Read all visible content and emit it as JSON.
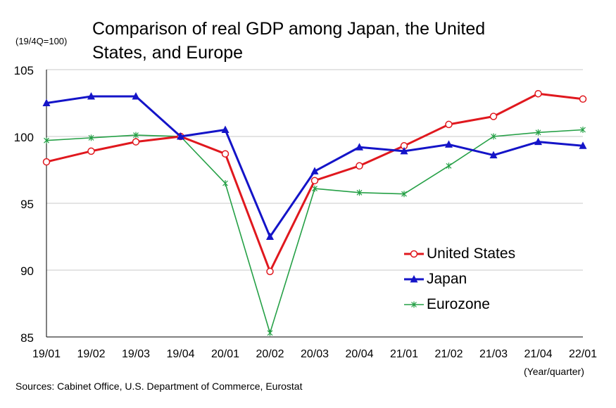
{
  "title": "Comparison of real GDP among Japan, the United States, and Europe",
  "y_unit": "(19/4Q=100)",
  "x_unit": "(Year/quarter)",
  "source": "Sources: Cabinet Office, U.S. Department of Commerce, Eurostat",
  "colors": {
    "us": "#e0181e",
    "japan": "#1414c8",
    "eurozone": "#25a046",
    "gridline": "#c8c8c8",
    "axis": "#000000"
  },
  "chart_data": {
    "type": "line",
    "title": "Comparison of real GDP among Japan, the United States, and Europe",
    "xlabel": "(Year/quarter)",
    "ylabel": "(19/4Q=100)",
    "categories": [
      "19/01",
      "19/02",
      "19/03",
      "19/04",
      "20/01",
      "20/02",
      "20/03",
      "20/04",
      "21/01",
      "21/02",
      "21/03",
      "21/04",
      "22/01"
    ],
    "ylim": [
      85,
      105
    ],
    "yticks": [
      85,
      90,
      95,
      100,
      105
    ],
    "grid": "horizontal",
    "legend_position": "bottom-right",
    "series": [
      {
        "key": "us",
        "name": "United States",
        "marker": "circle",
        "values": [
          98.1,
          98.9,
          99.6,
          100.0,
          98.7,
          89.9,
          96.7,
          97.8,
          99.3,
          100.9,
          101.5,
          103.2,
          102.8
        ]
      },
      {
        "key": "japan",
        "name": "Japan",
        "marker": "triangle",
        "values": [
          102.5,
          103.0,
          103.0,
          100.0,
          100.5,
          92.5,
          97.4,
          99.2,
          98.9,
          99.4,
          98.6,
          99.6,
          99.3
        ]
      },
      {
        "key": "eurozone",
        "name": "Eurozone",
        "marker": "x",
        "values": [
          99.7,
          99.9,
          100.1,
          100.0,
          96.5,
          85.3,
          96.1,
          95.8,
          95.7,
          97.8,
          100.0,
          100.3,
          100.5
        ]
      }
    ]
  }
}
